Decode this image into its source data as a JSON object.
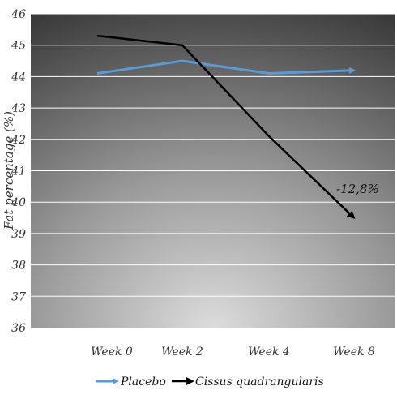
{
  "chart_data": {
    "type": "line",
    "categories": [
      "Week 0",
      "Week 2",
      "Week 4",
      "Week 8"
    ],
    "series": [
      {
        "name": "Placebo",
        "values": [
          44.1,
          44.5,
          44.1,
          44.2
        ],
        "color": "#5b9bd5"
      },
      {
        "name": "Cissus quadrangularis",
        "values": [
          45.3,
          45.0,
          42.1,
          39.5
        ],
        "color": "#000000"
      }
    ],
    "ylabel": "Fat percentage (%)",
    "xlabel": "",
    "ylim": [
      36,
      46
    ],
    "yticks": [
      "36",
      "37",
      "38",
      "39",
      "40",
      "41",
      "42",
      "43",
      "44",
      "45",
      "46"
    ],
    "grid": true,
    "legend_position": "bottom",
    "annotation": "-12,8%",
    "background": "radial gradient gray",
    "line_end": "arrow"
  }
}
